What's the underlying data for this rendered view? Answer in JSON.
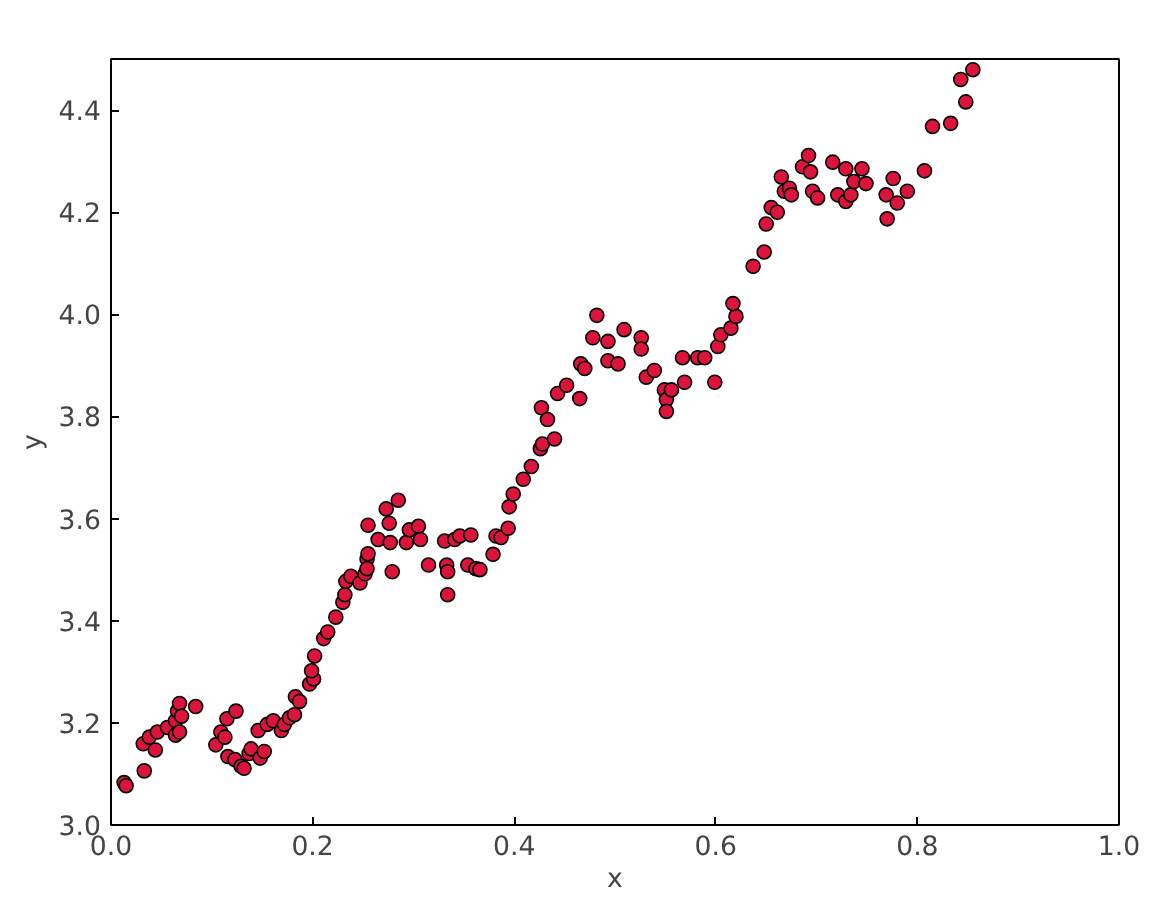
{
  "chart_data": {
    "type": "scatter",
    "xlabel": "x",
    "ylabel": "y",
    "marker": "circle",
    "grid": false,
    "xlim": [
      0,
      1
    ],
    "ylim": [
      3,
      4.5
    ],
    "xticks": [
      {
        "value": 0,
        "label": "0.0"
      },
      {
        "value": 0.2,
        "label": "0.2"
      },
      {
        "value": 0.4,
        "label": "0.4"
      },
      {
        "value": 0.6,
        "label": "0.6"
      },
      {
        "value": 0.8,
        "label": "0.8"
      },
      {
        "value": 1,
        "label": "1.0"
      }
    ],
    "yticks": [
      {
        "value": 3,
        "label": "3.0"
      },
      {
        "value": 3.2,
        "label": "3.2"
      },
      {
        "value": 3.4,
        "label": "3.4"
      },
      {
        "value": 3.6,
        "label": "3.6"
      },
      {
        "value": 3.8,
        "label": "3.8"
      },
      {
        "value": 4,
        "label": "4.0"
      },
      {
        "value": 4.2,
        "label": "4.2"
      },
      {
        "value": 4.4,
        "label": "4.4"
      }
    ],
    "series": [
      {
        "color": "#dc143c",
        "x": [
          0.013,
          0.015,
          0.033,
          0.032,
          0.038,
          0.044,
          0.046,
          0.056,
          0.064,
          0.064,
          0.066,
          0.068,
          0.07,
          0.068,
          0.084,
          0.104,
          0.109,
          0.113,
          0.116,
          0.115,
          0.124,
          0.123,
          0.129,
          0.132,
          0.137,
          0.139,
          0.148,
          0.152,
          0.146,
          0.155,
          0.161,
          0.169,
          0.172,
          0.177,
          0.182,
          0.183,
          0.187,
          0.197,
          0.201,
          0.199,
          0.202,
          0.211,
          0.215,
          0.223,
          0.23,
          0.232,
          0.233,
          0.238,
          0.247,
          0.252,
          0.254,
          0.255,
          0.254,
          0.255,
          0.265,
          0.273,
          0.276,
          0.279,
          0.277,
          0.285,
          0.293,
          0.296,
          0.305,
          0.307,
          0.315,
          0.331,
          0.333,
          0.334,
          0.334,
          0.341,
          0.346,
          0.354,
          0.357,
          0.362,
          0.366,
          0.379,
          0.382,
          0.387,
          0.394,
          0.395,
          0.399,
          0.409,
          0.417,
          0.426,
          0.428,
          0.44,
          0.427,
          0.433,
          0.443,
          0.452,
          0.465,
          0.466,
          0.47,
          0.478,
          0.482,
          0.493,
          0.493,
          0.503,
          0.509,
          0.526,
          0.526,
          0.531,
          0.539,
          0.549,
          0.551,
          0.551,
          0.556,
          0.567,
          0.569,
          0.582,
          0.589,
          0.599,
          0.602,
          0.605,
          0.615,
          0.62,
          0.617,
          0.637,
          0.648,
          0.65,
          0.655,
          0.661,
          0.665,
          0.668,
          0.673,
          0.675,
          0.686,
          0.692,
          0.694,
          0.696,
          0.701,
          0.716,
          0.721,
          0.729,
          0.729,
          0.734,
          0.737,
          0.745,
          0.749,
          0.769,
          0.77,
          0.776,
          0.78,
          0.79,
          0.807,
          0.815,
          0.833,
          0.848,
          0.843,
          0.855
        ],
        "values": [
          3.083,
          3.077,
          3.106,
          3.159,
          3.172,
          3.147,
          3.182,
          3.191,
          3.176,
          3.204,
          3.223,
          3.238,
          3.213,
          3.182,
          3.232,
          3.157,
          3.182,
          3.172,
          3.134,
          3.208,
          3.223,
          3.128,
          3.115,
          3.111,
          3.14,
          3.149,
          3.131,
          3.144,
          3.185,
          3.197,
          3.204,
          3.185,
          3.197,
          3.21,
          3.216,
          3.251,
          3.242,
          3.276,
          3.286,
          3.302,
          3.331,
          3.365,
          3.378,
          3.407,
          3.436,
          3.451,
          3.477,
          3.487,
          3.474,
          3.492,
          3.521,
          3.531,
          3.502,
          3.587,
          3.559,
          3.619,
          3.591,
          3.496,
          3.553,
          3.636,
          3.553,
          3.578,
          3.585,
          3.559,
          3.509,
          3.556,
          3.509,
          3.496,
          3.451,
          3.559,
          3.566,
          3.509,
          3.568,
          3.502,
          3.5,
          3.53,
          3.566,
          3.563,
          3.581,
          3.623,
          3.648,
          3.677,
          3.702,
          3.737,
          3.746,
          3.756,
          3.817,
          3.794,
          3.845,
          3.861,
          3.835,
          3.903,
          3.894,
          3.954,
          3.998,
          3.947,
          3.909,
          3.903,
          3.97,
          3.954,
          3.932,
          3.877,
          3.89,
          3.852,
          3.833,
          3.81,
          3.852,
          3.915,
          3.867,
          3.915,
          3.915,
          3.867,
          3.937,
          3.96,
          3.973,
          3.996,
          4.021,
          4.094,
          4.122,
          4.177,
          4.209,
          4.2,
          4.269,
          4.241,
          4.247,
          4.234,
          4.289,
          4.311,
          4.279,
          4.241,
          4.228,
          4.298,
          4.234,
          4.285,
          4.221,
          4.234,
          4.26,
          4.285,
          4.256,
          4.234,
          4.187,
          4.266,
          4.218,
          4.241,
          4.281,
          4.368,
          4.374,
          4.416,
          4.46,
          4.479
        ]
      }
    ]
  }
}
